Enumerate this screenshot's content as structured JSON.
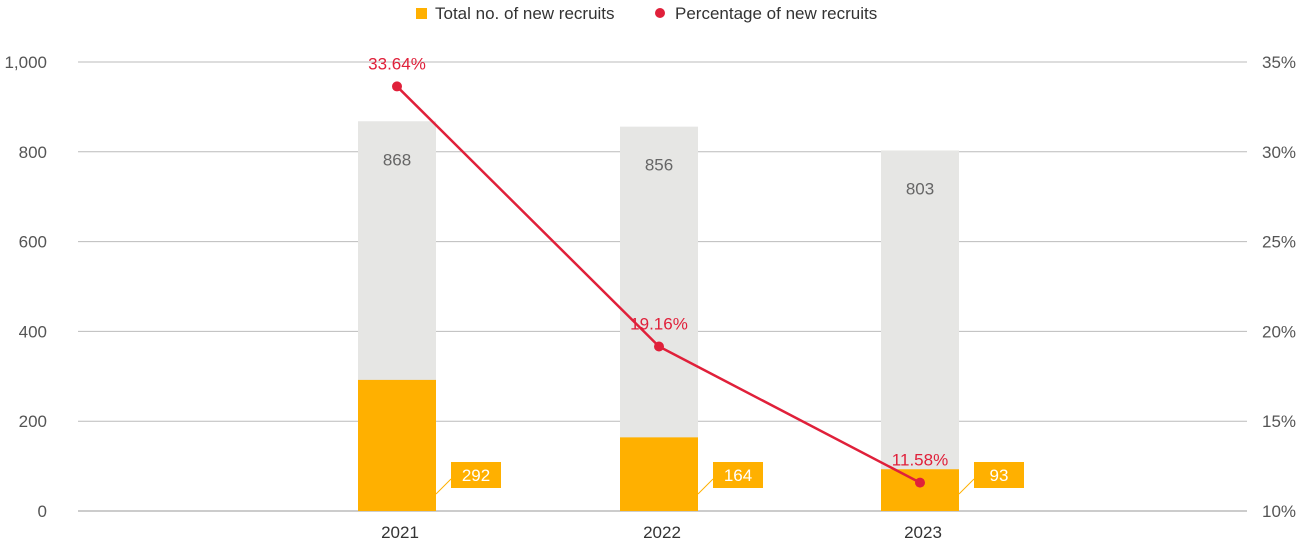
{
  "chart_data": {
    "type": "bar",
    "categories": [
      "2021",
      "2022",
      "2023"
    ],
    "series": [
      {
        "name": "",
        "type": "bar",
        "axis": "left",
        "values": [
          868,
          856,
          803
        ],
        "labels": [
          "868",
          "856",
          "803"
        ]
      },
      {
        "name": "Total no. of new recruits",
        "type": "bar",
        "axis": "left",
        "values": [
          292,
          164,
          93
        ],
        "labels": [
          "292",
          "164",
          "93"
        ]
      },
      {
        "name": "Percentage of new recruits",
        "type": "line",
        "axis": "right",
        "values": [
          33.64,
          19.16,
          11.58
        ],
        "labels": [
          "33.64%",
          "19.16%",
          "11.58%"
        ]
      }
    ],
    "y_left": {
      "min": 0,
      "max": 1000,
      "ticks": [
        0,
        200,
        400,
        600,
        800,
        1000
      ],
      "tick_labels": [
        "0",
        "200",
        "400",
        "600",
        "800",
        "1,000"
      ]
    },
    "y_right": {
      "min": 10,
      "max": 35,
      "ticks": [
        10,
        15,
        20,
        25,
        30,
        35
      ],
      "tick_labels": [
        "10%",
        "15%",
        "20%",
        "25%",
        "30%",
        "35%"
      ]
    },
    "legend": {
      "position": "top",
      "items": [
        {
          "label": "Total no. of new recruits",
          "marker": "square",
          "color": "#FFB000"
        },
        {
          "label": "Percentage of new recruits",
          "marker": "circle",
          "color": "#E0203A"
        }
      ]
    },
    "colors": {
      "total_bar": "#E6E6E4",
      "new_bar": "#FFB000",
      "line": "#E0203A"
    },
    "grid": true
  }
}
